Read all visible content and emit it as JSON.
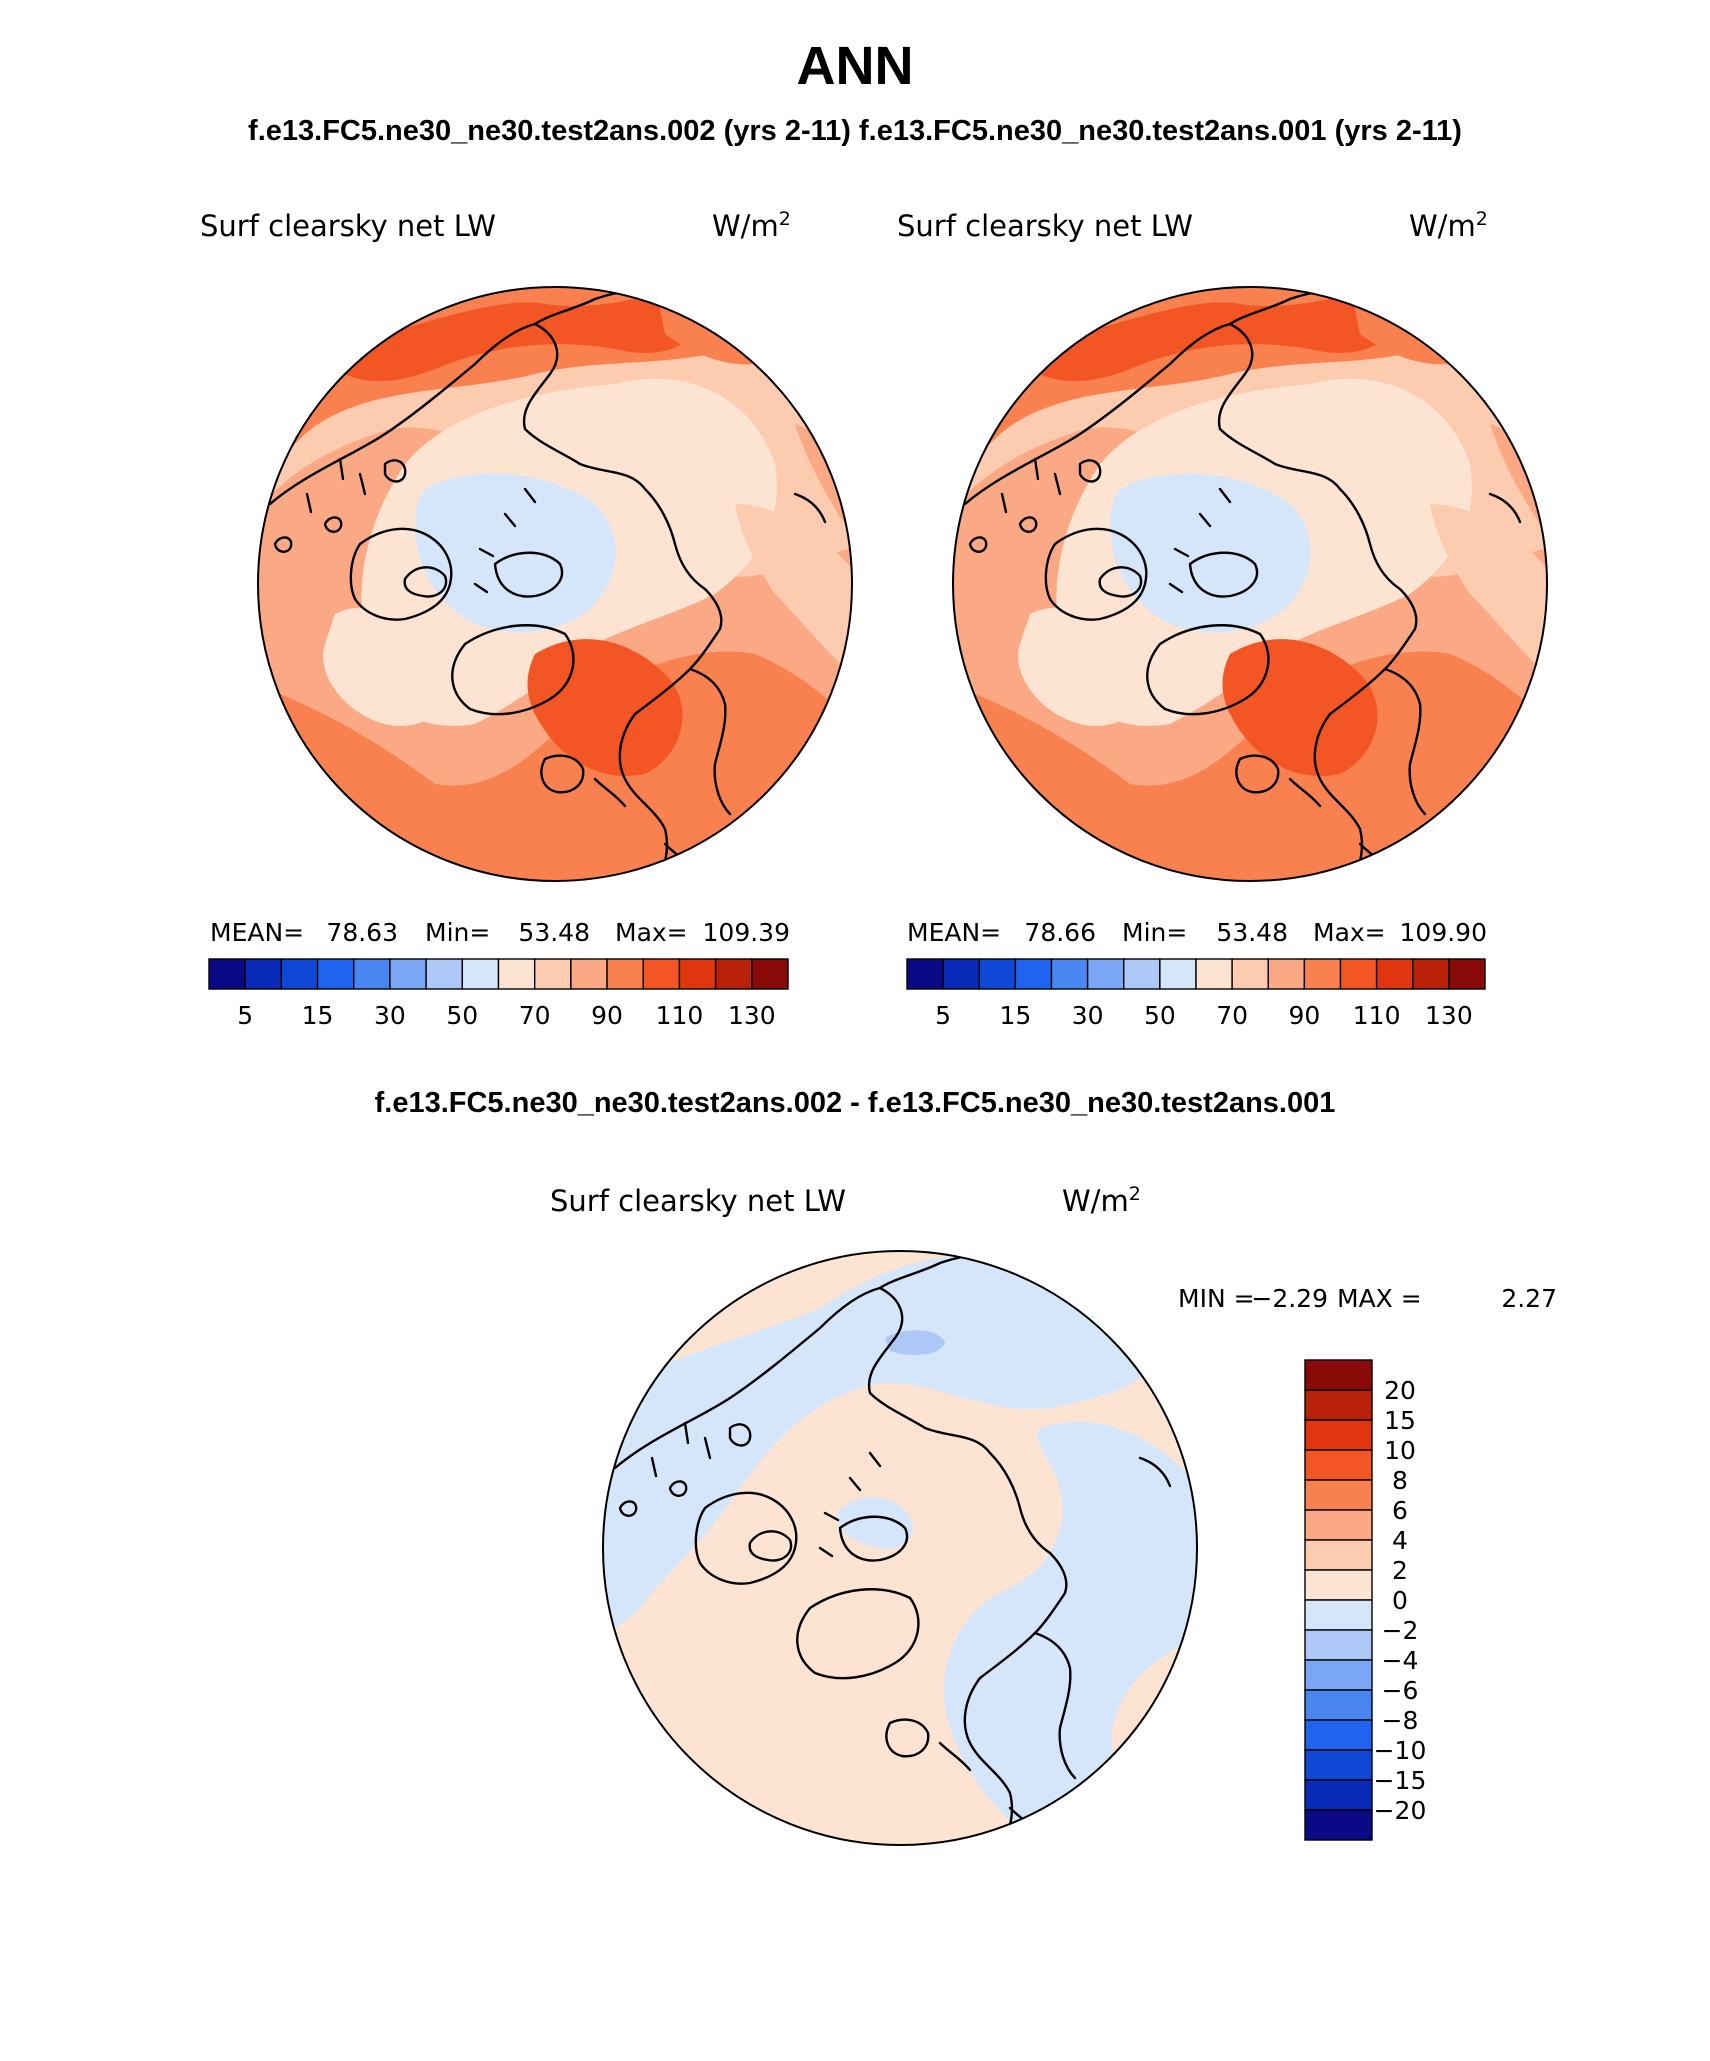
{
  "page": {
    "title": "ANN",
    "subtitle": "f.e13.FC5.ne30_ne30.test2ans.002 (yrs 2-11) f.e13.FC5.ne30_ne30.test2ans.001 (yrs 2-11)",
    "diff_title": "f.e13.FC5.ne30_ne30.test2ans.002 - f.e13.FC5.ne30_ne30.test2ans.001"
  },
  "colors": {
    "abs": [
      "#0a0a87",
      "#0a2ab8",
      "#0f47d6",
      "#1f63f0",
      "#4a86f2",
      "#7aa6f5",
      "#adc8f7",
      "#d6e6fa",
      "#fde4d2",
      "#fccbb0",
      "#fba884",
      "#f9814f",
      "#f45525",
      "#e0350e",
      "#b82107",
      "#8a0a0a"
    ],
    "diff": [
      "#0a0a87",
      "#0a2ab8",
      "#0f47d6",
      "#1f63f0",
      "#4a86f2",
      "#7aa6f5",
      "#adc8f7",
      "#d6e6fa",
      "#fde4d2",
      "#fccbb0",
      "#fba884",
      "#f9814f",
      "#f45525",
      "#e0350e",
      "#b82107",
      "#8a0a0a"
    ]
  },
  "chart_data": [
    {
      "type": "map",
      "projection": "north polar stereographic",
      "variable": "Surf clearsky net LW",
      "units_base": "W/m",
      "units_exp": "2",
      "stats": {
        "mean_label": "MEAN=",
        "mean": "78.63",
        "min_label": "Min=",
        "min": "53.48",
        "max_label": "Max=",
        "max": "109.39"
      },
      "colorbar_levels": [
        "5",
        "10",
        "15",
        "20",
        "30",
        "40",
        "50",
        "60",
        "70",
        "80",
        "90",
        "100",
        "110",
        "120",
        "130"
      ],
      "colorbar_tick_labels": [
        "5",
        "15",
        "30",
        "50",
        "70",
        "90",
        "110",
        "130"
      ]
    },
    {
      "type": "map",
      "projection": "north polar stereographic",
      "variable": "Surf clearsky net LW",
      "units_base": "W/m",
      "units_exp": "2",
      "stats": {
        "mean_label": "MEAN=",
        "mean": "78.66",
        "min_label": "Min=",
        "min": "53.48",
        "max_label": "Max=",
        "max": "109.90"
      },
      "colorbar_levels": [
        "5",
        "10",
        "15",
        "20",
        "30",
        "40",
        "50",
        "60",
        "70",
        "80",
        "90",
        "100",
        "110",
        "120",
        "130"
      ],
      "colorbar_tick_labels": [
        "5",
        "15",
        "30",
        "50",
        "70",
        "90",
        "110",
        "130"
      ]
    },
    {
      "type": "map",
      "projection": "north polar stereographic",
      "variable": "Surf clearsky net LW",
      "units_base": "W/m",
      "units_exp": "2",
      "stats": {
        "min_label": "MIN =",
        "min": "−2.29",
        "max_label": "MAX =",
        "max": "2.27"
      },
      "colorbar_levels": [
        "20",
        "15",
        "10",
        "8",
        "6",
        "4",
        "2",
        "0",
        "−2",
        "−4",
        "−6",
        "−8",
        "−10",
        "−15",
        "−20"
      ]
    }
  ]
}
